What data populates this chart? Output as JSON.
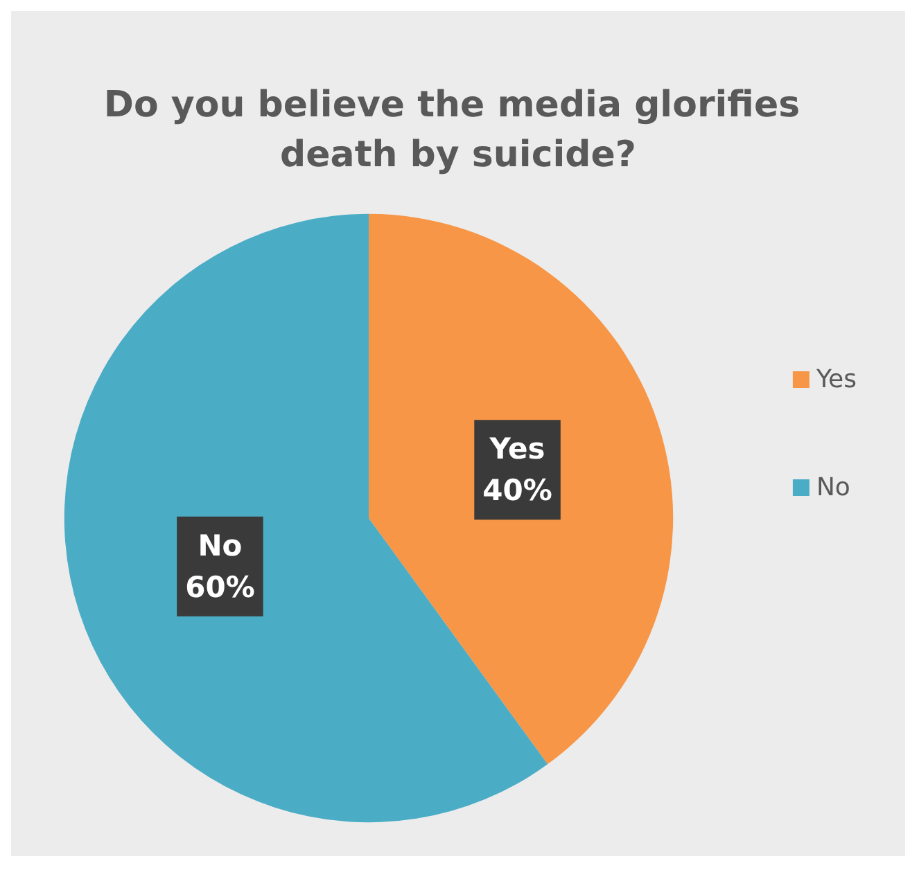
{
  "chart_data": {
    "type": "pie",
    "title": "Do you believe the media glorifies death by suicide?",
    "categories": [
      "Yes",
      "No"
    ],
    "values": [
      40,
      60
    ],
    "colors": [
      "#f79646",
      "#4bacc6"
    ],
    "value_labels": [
      "40%",
      "60%"
    ],
    "legend": "right"
  }
}
